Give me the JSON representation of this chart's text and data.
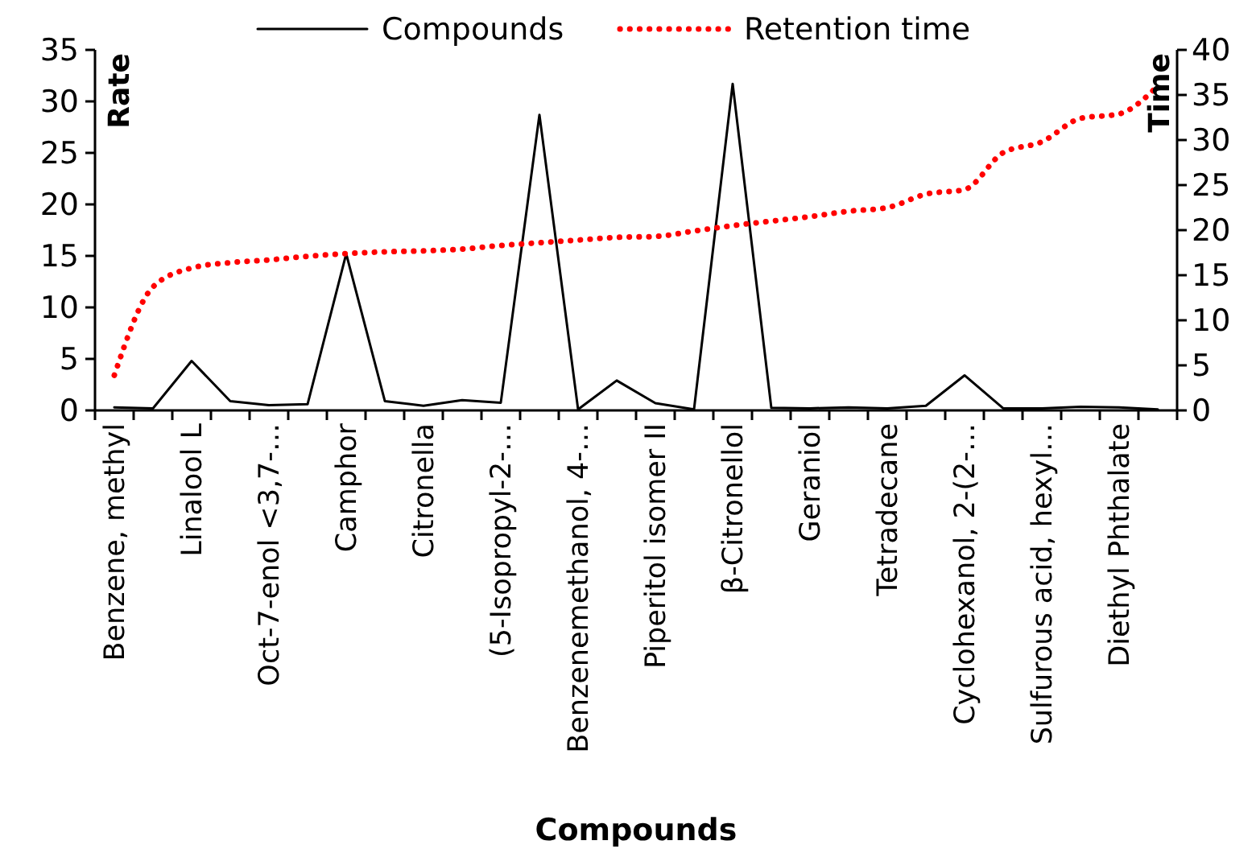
{
  "chart_data": {
    "type": "line",
    "xlabel": "Compounds",
    "ylabel": "Rate",
    "y2label": "Time",
    "categories": [
      "Benzene, methyl",
      null,
      "Linalool L",
      null,
      "Oct-7-enol <3,7-…",
      null,
      "Camphor",
      null,
      "Citronella",
      null,
      "(5-Isopropyl-2-…",
      null,
      "Benzenemethanol, 4-…",
      null,
      "Piperitol isomer II",
      null,
      "β-Citronellol",
      null,
      "Geraniol",
      null,
      "Tetradecane",
      null,
      "Cyclohexanol, 2-(2-…",
      null,
      "Sulfurous acid, hexyl…",
      null,
      "Diethyl Phthalate",
      null
    ],
    "series": [
      {
        "name": "Compounds",
        "color": "#000000",
        "line_style": "solid",
        "values": [
          0.3,
          0.2,
          4.8,
          0.9,
          0.5,
          0.6,
          15.2,
          0.9,
          0.45,
          1.0,
          0.75,
          28.7,
          0.1,
          2.9,
          0.7,
          0.1,
          31.7,
          0.25,
          0.2,
          0.3,
          0.2,
          0.45,
          3.4,
          0.2,
          0.2,
          0.35,
          0.3,
          0.1
        ]
      },
      {
        "name": "Retention time",
        "color": "#ff0000",
        "line_style": "dotted",
        "axis": "y2",
        "values": [
          3.9,
          13.7,
          15.8,
          16.4,
          16.7,
          17.1,
          17.4,
          17.6,
          17.7,
          17.9,
          18.3,
          18.6,
          18.9,
          19.2,
          19.3,
          19.9,
          20.5,
          21.0,
          21.5,
          22.1,
          22.5,
          24.0,
          24.5,
          28.6,
          29.8,
          32.4,
          32.9,
          36.0
        ]
      }
    ],
    "ylim": [
      0,
      35
    ],
    "yticks": [
      0,
      5,
      10,
      15,
      20,
      25,
      30,
      35
    ],
    "y2lim": [
      0,
      40
    ],
    "y2ticks": [
      0,
      5,
      10,
      15,
      20,
      25,
      30,
      35,
      40
    ],
    "legend": "top",
    "grid": false,
    "marker": "none"
  }
}
